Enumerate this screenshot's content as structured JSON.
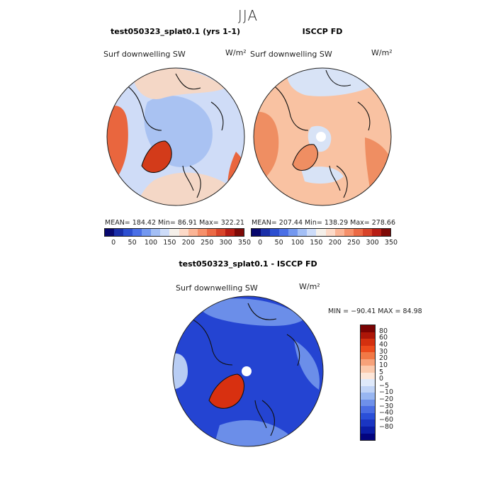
{
  "figure": {
    "season": "JJA",
    "diff_title": "test050323_splat0.1 - ISCCP FD"
  },
  "panels": [
    {
      "title": "test050323_splat0.1 (yrs 1-1)",
      "variable": "Surf downwelling SW",
      "units": "W/m²",
      "stats_text": "MEAN= 184.42   Min=   86.91    Max= 322.21"
    },
    {
      "title": "ISCCP FD",
      "variable": "Surf downwelling SW",
      "units": "W/m²",
      "stats_text": "MEAN= 207.44   Min= 138.29    Max= 278.66"
    }
  ],
  "shared_colorbar": {
    "colors": [
      "#08086e",
      "#1a2fa8",
      "#2d4fd0",
      "#4a6fe6",
      "#7398f0",
      "#a3bff6",
      "#cddcf9",
      "#f5f0ea",
      "#fddac8",
      "#fbb596",
      "#f6906a",
      "#ec6a45",
      "#d9442a",
      "#b81e15",
      "#7e0a07"
    ],
    "tick_labels": [
      "0",
      "50",
      "100",
      "150",
      "200",
      "250",
      "300",
      "350"
    ]
  },
  "diff_panel": {
    "variable": "Surf downwelling SW",
    "units": "W/m²",
    "stats_text": "MIN = −90.41 MAX =  84.98",
    "colorbar": {
      "colors": [
        "#7a0303",
        "#ad1608",
        "#d4300f",
        "#ec4b1c",
        "#f27946",
        "#f7a27a",
        "#fbc9ac",
        "#fde6d8",
        "#dfe9fa",
        "#c0d3f6",
        "#98b6f1",
        "#6e90ea",
        "#4a6de3",
        "#2a4fd8",
        "#1a35c2",
        "#0b1da6",
        "#03047e"
      ],
      "tick_labels": [
        "80",
        "60",
        "40",
        "30",
        "20",
        "10",
        "5",
        "0",
        "−5",
        "−10",
        "−20",
        "−30",
        "−40",
        "−60",
        "−80"
      ]
    }
  },
  "map_colors": {
    "model_base": "#cfdcf7",
    "model_mid": "#a9c2f2",
    "model_warm": "#f4d7c6",
    "model_hot": "#e9663e",
    "model_greenland": "#d33b1a",
    "obs_base": "#f9c2a2",
    "obs_hot": "#ef8e62",
    "obs_cool": "#d8e3f6",
    "diff_base": "#2444d2",
    "diff_light": "#6b8ee9",
    "diff_pale": "#b8cdf4",
    "diff_greenland": "#d83010",
    "coast": "#111111"
  }
}
